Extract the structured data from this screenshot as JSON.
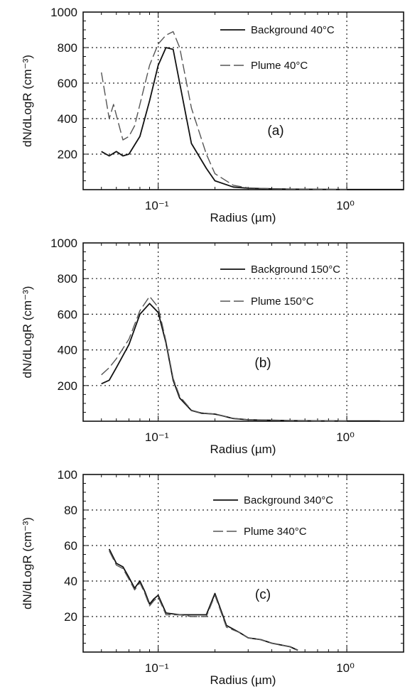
{
  "chart_data": [
    {
      "type": "line",
      "panel_label": "(a)",
      "xlabel": "Radius (µm)",
      "ylabel": "dN/dLogR (cm⁻³)",
      "xscale": "log",
      "xlim": [
        0.04,
        2.0
      ],
      "ylim": [
        0,
        1000
      ],
      "yticks": [
        200,
        400,
        600,
        800,
        1000
      ],
      "xticks": [
        {
          "value": 0.1,
          "label": "10⁻¹"
        },
        {
          "value": 1.0,
          "label": "10⁰"
        }
      ],
      "grid": true,
      "legend_position": "top-right",
      "series": [
        {
          "name": "Background 40°C",
          "style": "solid",
          "color": "#111111",
          "x": [
            0.05,
            0.055,
            0.06,
            0.065,
            0.07,
            0.08,
            0.09,
            0.1,
            0.11,
            0.12,
            0.13,
            0.15,
            0.18,
            0.2,
            0.25,
            0.3,
            0.4,
            0.5,
            0.7,
            1.0,
            1.5,
            2.0
          ],
          "y": [
            215,
            190,
            215,
            190,
            200,
            300,
            500,
            700,
            800,
            790,
            600,
            260,
            120,
            50,
            15,
            8,
            5,
            3,
            2,
            1,
            1,
            1
          ]
        },
        {
          "name": "Plume 40°C",
          "style": "dashed",
          "color": "#555555",
          "x": [
            0.05,
            0.055,
            0.058,
            0.06,
            0.065,
            0.07,
            0.075,
            0.08,
            0.09,
            0.1,
            0.11,
            0.12,
            0.13,
            0.15,
            0.18,
            0.2,
            0.25,
            0.3,
            0.4,
            0.5,
            0.7,
            1.0
          ],
          "y": [
            660,
            400,
            480,
            420,
            280,
            300,
            360,
            480,
            700,
            820,
            870,
            890,
            800,
            460,
            200,
            90,
            25,
            10,
            5,
            3,
            2,
            1
          ]
        }
      ]
    },
    {
      "type": "line",
      "panel_label": "(b)",
      "xlabel": "Radius (µm)",
      "ylabel": "dN/dLogR (cm⁻³)",
      "xscale": "log",
      "xlim": [
        0.04,
        2.0
      ],
      "ylim": [
        0,
        1000
      ],
      "yticks": [
        200,
        400,
        600,
        800,
        1000
      ],
      "xticks": [
        {
          "value": 0.1,
          "label": "10⁻¹"
        },
        {
          "value": 1.0,
          "label": "10⁰"
        }
      ],
      "grid": true,
      "legend_position": "top-right",
      "series": [
        {
          "name": "Background 150°C",
          "style": "solid",
          "color": "#111111",
          "x": [
            0.05,
            0.055,
            0.06,
            0.07,
            0.08,
            0.09,
            0.1,
            0.11,
            0.12,
            0.13,
            0.15,
            0.17,
            0.2,
            0.22,
            0.25,
            0.3,
            0.4,
            0.5,
            0.7,
            1.0,
            1.5
          ],
          "y": [
            210,
            230,
            300,
            430,
            600,
            660,
            610,
            440,
            230,
            130,
            60,
            45,
            40,
            30,
            15,
            8,
            5,
            3,
            2,
            1,
            1
          ]
        },
        {
          "name": "Plume 150°C",
          "style": "dashed",
          "color": "#555555",
          "x": [
            0.05,
            0.055,
            0.06,
            0.07,
            0.08,
            0.09,
            0.1,
            0.11,
            0.12,
            0.13,
            0.15,
            0.17,
            0.2,
            0.22,
            0.25,
            0.3,
            0.4,
            0.5,
            0.7,
            1.0
          ],
          "y": [
            260,
            300,
            350,
            460,
            620,
            700,
            640,
            450,
            240,
            140,
            62,
            46,
            40,
            30,
            16,
            8,
            5,
            3,
            2,
            1
          ]
        }
      ]
    },
    {
      "type": "line",
      "panel_label": "(c)",
      "xlabel": "Radius (µm)",
      "ylabel": "dN/dLogR (cm⁻³)",
      "xscale": "log",
      "xlim": [
        0.04,
        2.0
      ],
      "ylim": [
        0,
        100
      ],
      "yticks": [
        20,
        40,
        60,
        80,
        100
      ],
      "xticks": [
        {
          "value": 0.1,
          "label": "10⁻¹"
        },
        {
          "value": 1.0,
          "label": "10⁰"
        }
      ],
      "grid": true,
      "legend_position": "top-right",
      "series": [
        {
          "name": "Background 340°C",
          "style": "solid",
          "color": "#111111",
          "x": [
            0.055,
            0.06,
            0.065,
            0.07,
            0.075,
            0.08,
            0.085,
            0.09,
            0.095,
            0.1,
            0.11,
            0.13,
            0.15,
            0.18,
            0.2,
            0.23,
            0.27,
            0.3,
            0.35,
            0.4,
            0.5,
            0.55
          ],
          "y": [
            58,
            50,
            48,
            42,
            36,
            40,
            34,
            27,
            30,
            32,
            22,
            21,
            21,
            21,
            33,
            15,
            11,
            8,
            7,
            5,
            3,
            1
          ]
        },
        {
          "name": "Plume 340°C",
          "style": "dashed",
          "color": "#555555",
          "x": [
            0.055,
            0.06,
            0.065,
            0.07,
            0.075,
            0.08,
            0.085,
            0.09,
            0.095,
            0.1,
            0.11,
            0.13,
            0.15,
            0.18,
            0.2,
            0.23,
            0.27,
            0.3,
            0.35,
            0.4,
            0.5,
            0.55
          ],
          "y": [
            57,
            49,
            47,
            41,
            35,
            39,
            33,
            26,
            29,
            31,
            21,
            21,
            20,
            20,
            32,
            14,
            11,
            8,
            7,
            5,
            3,
            1
          ]
        }
      ]
    }
  ]
}
